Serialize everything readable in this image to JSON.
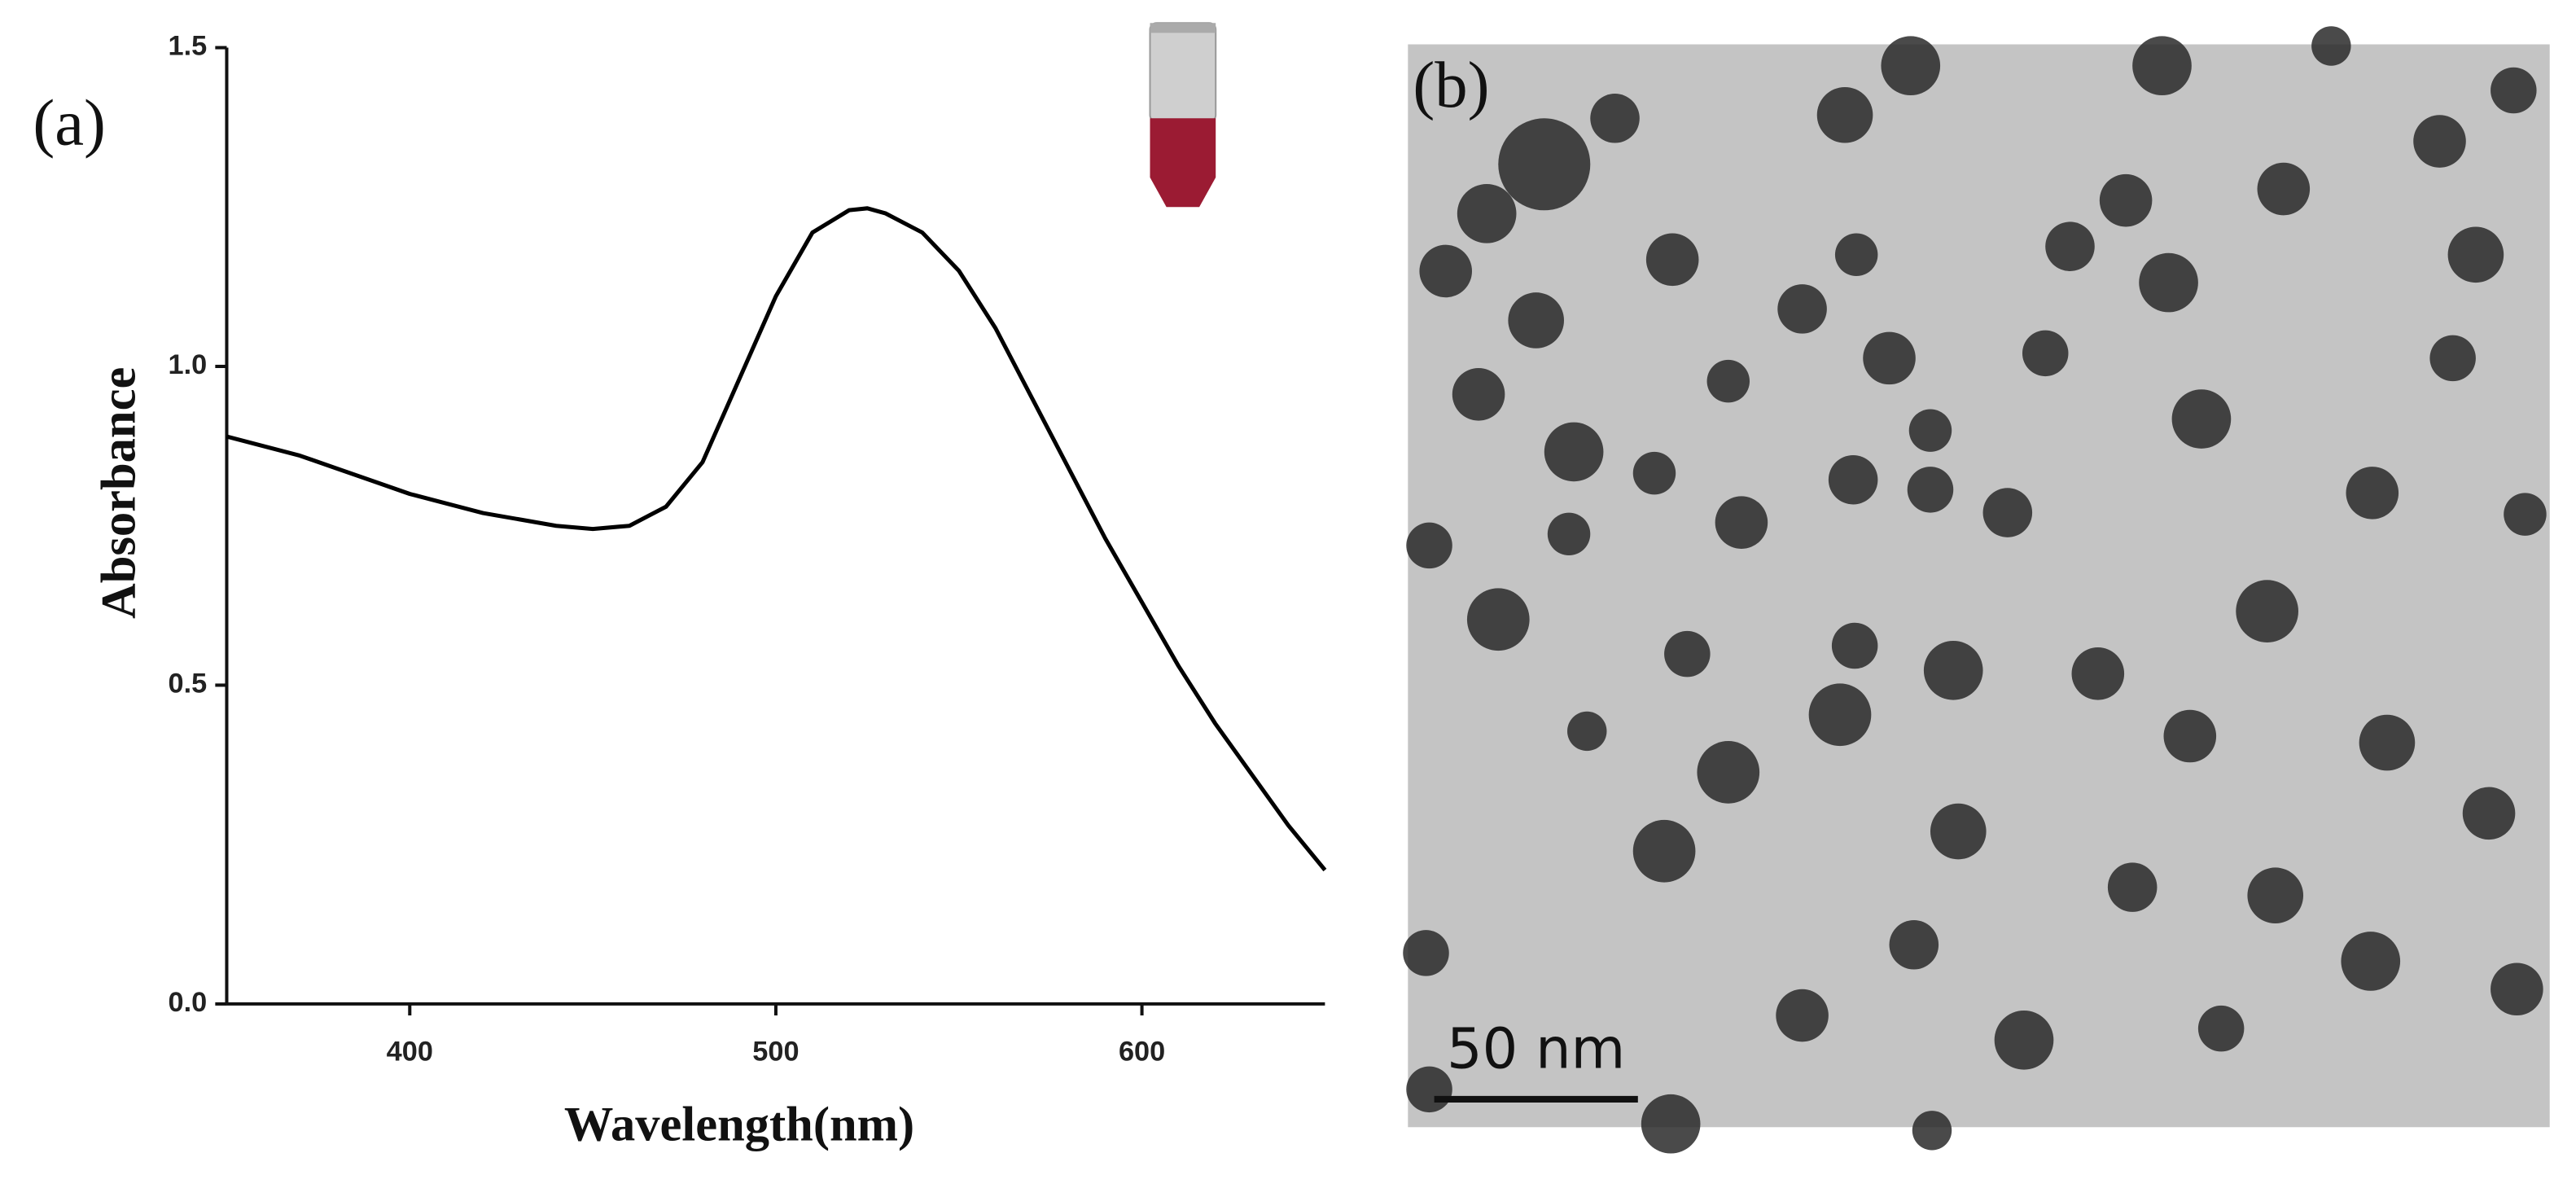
{
  "chart_data": {
    "type": "line",
    "panel_label": "(a)",
    "xlabel": "Wavelength(nm)",
    "ylabel": "Absorbance",
    "x": [
      350,
      360,
      370,
      380,
      390,
      400,
      410,
      420,
      430,
      440,
      450,
      460,
      470,
      480,
      490,
      500,
      510,
      520,
      525,
      530,
      540,
      550,
      560,
      570,
      580,
      590,
      600,
      610,
      620,
      630,
      640,
      650
    ],
    "series": [
      {
        "name": "Absorbance",
        "color": "#000000",
        "values": [
          0.89,
          0.875,
          0.86,
          0.84,
          0.82,
          0.8,
          0.785,
          0.77,
          0.76,
          0.75,
          0.745,
          0.75,
          0.78,
          0.85,
          0.98,
          1.11,
          1.21,
          1.245,
          1.248,
          1.24,
          1.21,
          1.15,
          1.06,
          0.95,
          0.84,
          0.73,
          0.63,
          0.53,
          0.44,
          0.36,
          0.28,
          0.21
        ]
      }
    ],
    "xlim": [
      350,
      650
    ],
    "xticks": [
      400,
      500,
      600
    ],
    "ylim": [
      0,
      1.5
    ],
    "yticks": [
      {
        "value": 0,
        "label": "0.0"
      },
      0.5,
      {
        "value": 1,
        "label": "1.0"
      },
      1.5
    ]
  },
  "image_panel": {
    "panel_label": "(b)",
    "scale_bar_label": "50 nm"
  }
}
